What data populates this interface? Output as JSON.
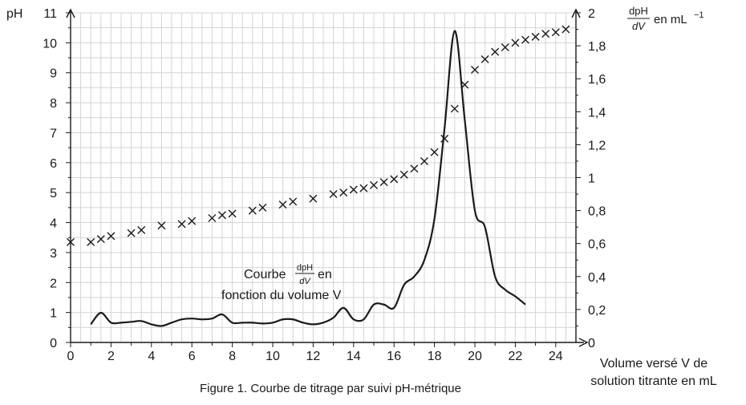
{
  "chart_data": {
    "type": "line",
    "caption": "Figure 1. Courbe de titrage par suivi pH-métrique",
    "xlabel_line1": "Volume versé V de",
    "xlabel_line2": "solution titrante en mL",
    "ylabel_left": "pH",
    "ylabel_right_fraction_num": "dpH",
    "ylabel_right_fraction_den": "dV",
    "ylabel_right_unit": "en mL",
    "ylabel_right_exponent": "−1",
    "annotation_word": "Courbe",
    "annotation_fraction_num": "dpH",
    "annotation_fraction_den": "dV",
    "annotation_after": "en",
    "annotation_line2": "fonction du volume V",
    "xlim": [
      0,
      25
    ],
    "ylim_left": [
      0,
      11
    ],
    "ylim_right": [
      0,
      2
    ],
    "x_ticks": [
      0,
      2,
      4,
      6,
      8,
      10,
      12,
      14,
      16,
      18,
      20,
      22,
      24
    ],
    "x_tick_labels": [
      "0",
      "2",
      "4",
      "6",
      "8",
      "10",
      "12",
      "14",
      "16",
      "18",
      "20",
      "22",
      "24"
    ],
    "y_left_ticks": [
      0,
      1,
      2,
      3,
      4,
      5,
      6,
      7,
      8,
      9,
      10,
      11
    ],
    "y_left_tick_labels": [
      "0",
      "1",
      "2",
      "3",
      "4",
      "5",
      "6",
      "7",
      "8",
      "9",
      "10",
      "11"
    ],
    "y_right_ticks": [
      0,
      0.2,
      0.4,
      0.6,
      0.8,
      1,
      1.2,
      1.4,
      1.6,
      1.8,
      2
    ],
    "y_right_tick_labels": [
      "0",
      "0,2",
      "0,4",
      "0,6",
      "0,8",
      "1",
      "1,2",
      "1,4",
      "1,6",
      "1,8",
      "2"
    ],
    "grid": true,
    "series": [
      {
        "axis": "left",
        "marker": "x",
        "x": [
          0,
          1,
          1.5,
          2,
          3,
          3.5,
          4.5,
          5.5,
          6,
          7,
          7.5,
          8,
          9,
          9.5,
          10.5,
          11,
          12,
          13,
          13.5,
          14,
          14.5,
          15,
          15.5,
          16,
          16.5,
          17,
          17.5,
          18,
          18.5,
          19,
          19.5,
          20,
          20.5,
          21,
          21.5,
          22,
          22.5,
          23,
          23.5,
          24,
          24.5
        ],
        "y": [
          3.35,
          3.35,
          3.45,
          3.55,
          3.65,
          3.75,
          3.9,
          3.95,
          4.05,
          4.15,
          4.25,
          4.3,
          4.4,
          4.5,
          4.6,
          4.7,
          4.8,
          4.95,
          5.0,
          5.1,
          5.15,
          5.25,
          5.35,
          5.45,
          5.6,
          5.8,
          6.05,
          6.35,
          6.8,
          7.8,
          8.6,
          9.1,
          9.45,
          9.7,
          9.85,
          10.0,
          10.1,
          10.2,
          10.3,
          10.35,
          10.45
        ]
      },
      {
        "axis": "right",
        "marker": "none",
        "x": [
          1,
          1.5,
          2,
          2.5,
          3,
          3.5,
          4,
          4.5,
          5,
          5.5,
          6,
          6.5,
          7,
          7.5,
          8,
          8.5,
          9,
          9.5,
          10,
          10.5,
          11,
          11.5,
          12,
          12.5,
          13,
          13.5,
          14,
          14.5,
          15,
          15.5,
          16,
          16.5,
          17,
          17.5,
          18,
          18.5,
          19,
          19.5,
          20,
          20.5,
          21,
          21.5,
          22,
          22.5
        ],
        "y": [
          0.11,
          0.18,
          0.12,
          0.12,
          0.125,
          0.13,
          0.11,
          0.1,
          0.12,
          0.14,
          0.145,
          0.14,
          0.145,
          0.17,
          0.12,
          0.12,
          0.12,
          0.115,
          0.12,
          0.14,
          0.14,
          0.12,
          0.11,
          0.12,
          0.15,
          0.21,
          0.14,
          0.14,
          0.23,
          0.23,
          0.21,
          0.35,
          0.4,
          0.5,
          0.75,
          1.3,
          1.89,
          1.35,
          0.8,
          0.7,
          0.4,
          0.32,
          0.28,
          0.23
        ]
      }
    ]
  }
}
